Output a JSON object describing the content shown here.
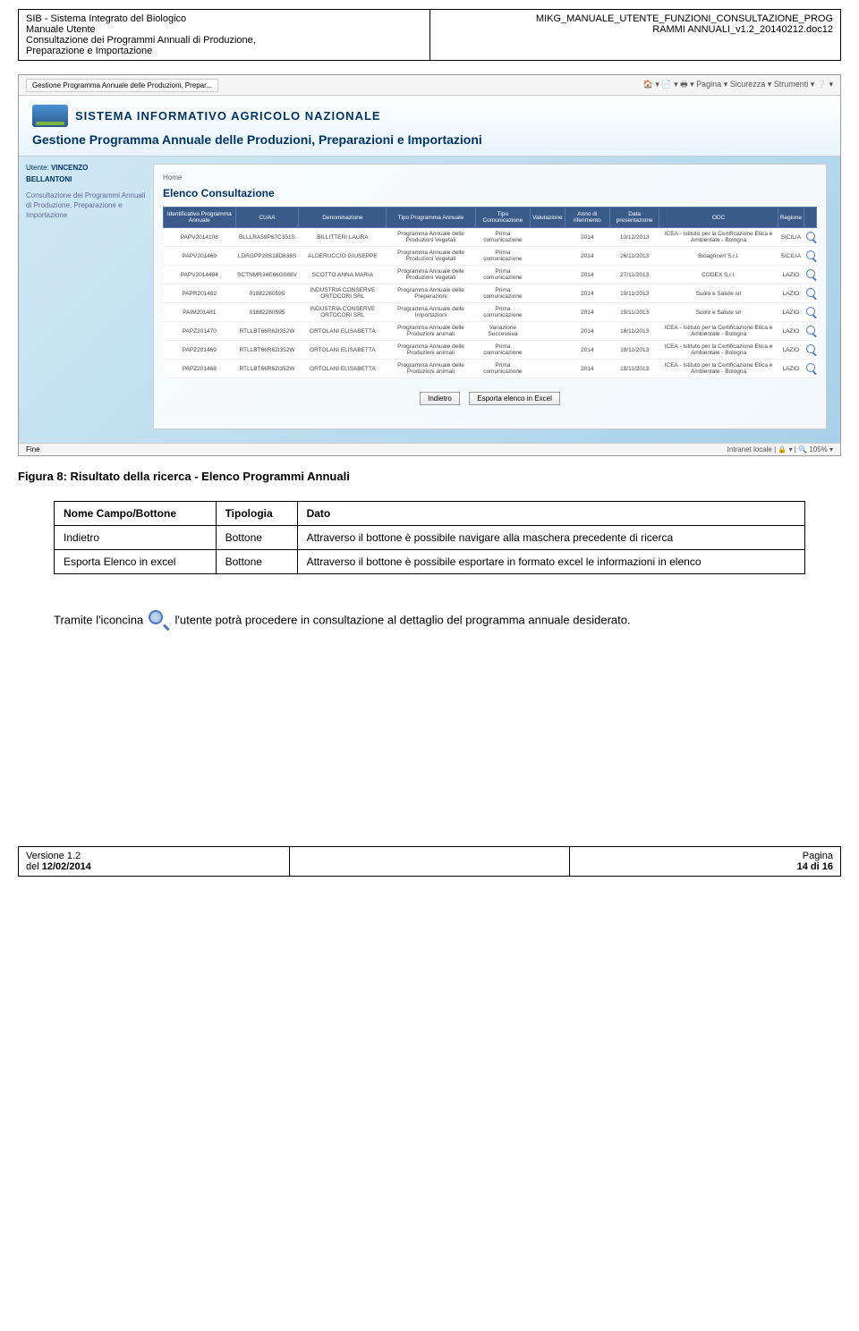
{
  "header": {
    "left_line1": "SIB - Sistema Integrato del Biologico",
    "left_line2": "Manuale Utente",
    "left_line3": "Consultazione dei Programmi Annuali di Produzione,",
    "left_line4": "Preparazione e Importazione",
    "right_line1": "MIKG_MANUALE_UTENTE_FUNZIONI_CONSULTAZIONE_PROG",
    "right_line2": "RAMMI ANNUALI_v1.2_20140212.doc12"
  },
  "browser": {
    "tab": "Gestione Programma Annuale delle Produzioni, Prepar...",
    "tools": "🏠 ▾  📄  ▾  🖶 ▾  Pagina ▾  Sicurezza ▾  Strumenti ▾  ❔ ▾",
    "status_left": "Fine",
    "status_right": "Intranet locale      | 🔒 ▾ | 🔍 105% ▾"
  },
  "banner": {
    "system": "SISTEMA INFORMATIVO AGRICOLO NAZIONALE",
    "app_title": "Gestione Programma Annuale delle Produzioni, Preparazioni e Importazioni"
  },
  "sidebar": {
    "user_label": "Utente:",
    "user_first": "VINCENZO",
    "user_last": "BELLANTONI",
    "menu": "Consultazione dei Programmi Annuali di Produzione, Preparazione e Importazione"
  },
  "panel": {
    "breadcrumb": "Home",
    "title": "Elenco Consultazione"
  },
  "table": {
    "columns": [
      "Identificativo Programma Annuale",
      "CUAA",
      "Denominazione",
      "Tipo Programma Annuale",
      "Tipo Comunicazione",
      "Valutazione",
      "Anno di riferimento",
      "Data presentazione",
      "ODC",
      "Regione",
      ""
    ],
    "rows": [
      [
        "PAPV2014108",
        "BLLLRA59P67C351S",
        "BILLITTERI LAURA",
        "Programma Annuale delle Produzioni Vegetali",
        "Prima comunicazione",
        "",
        "2014",
        "10/12/2013",
        "ICEA - Istituto per la Certificazione Etica e Ambientale - Bologna",
        "SICILIA"
      ],
      [
        "PAPV201469",
        "LDRGPP28S18D636S",
        "ALDERUCCIO GIUSEPPE",
        "Programma Annuale delle Produzioni Vegetali",
        "Prima comunicazione",
        "",
        "2014",
        "26/11/2013",
        "Bioagricert S.r.l.",
        "SICILIA"
      ],
      [
        "PAPV2014484",
        "SCTNMR34E66G088V",
        "SCOTTO ANNA MARIA",
        "Programma Annuale delle Produzioni Vegetali",
        "Prima comunicazione",
        "",
        "2014",
        "27/11/2013",
        "CODEX S.r.l.",
        "LAZIO"
      ],
      [
        "PAPR201482",
        "01882280595",
        "INDUSTRIA CONSERVE ORTOCORI SRL",
        "Programma Annuale delle Preparazioni",
        "Prima comunicazione",
        "",
        "2014",
        "19/11/2013",
        "Suolo e Salute srl",
        "LAZIO"
      ],
      [
        "PAIM201481",
        "01882280595",
        "INDUSTRIA CONSERVE ORTOCORI SRL",
        "Programma Annuale delle Importazioni",
        "Prima comunicazione",
        "",
        "2014",
        "19/11/2013",
        "Suolo e Salute srl",
        "LAZIO"
      ],
      [
        "PAPZ201470",
        "RTLLBT66R62I352W",
        "ORTOLANI ELISABETTA",
        "Programma Annuale delle Produzioni animali",
        "Variazione Successiva",
        "",
        "2014",
        "18/11/2013",
        "ICEA - Istituto per la Certificazione Etica e Ambientale - Bologna",
        "LAZIO"
      ],
      [
        "PAPZ201469",
        "RTLLBT66R62I352W",
        "ORTOLANI ELISABETTA",
        "Programma Annuale delle Produzioni animali",
        "Prima comunicazione",
        "",
        "2014",
        "18/11/2013",
        "ICEA - Istituto per la Certificazione Etica e Ambientale - Bologna",
        "LAZIO"
      ],
      [
        "PAPZ201468",
        "RTLLBT66R62I352W",
        "ORTOLANI ELISABETTA",
        "Programma Annuale delle Produzioni animali",
        "Prima comunicazione",
        "",
        "2014",
        "18/11/2013",
        "ICEA - Istituto per la Certificazione Etica e Ambientale - Bologna",
        "LAZIO"
      ]
    ]
  },
  "buttons": {
    "back": "Indietro",
    "export": "Esporta elenco in Excel"
  },
  "figure_caption": "Figura 8: Risultato della ricerca - Elenco Programmi Annuali",
  "desc_table": {
    "headers": [
      "Nome Campo/Bottone",
      "Tipologia",
      "Dato"
    ],
    "rows": [
      [
        "Indietro",
        "Bottone",
        "Attraverso il bottone è possibile navigare alla maschera precedente di ricerca"
      ],
      [
        "Esporta Elenco in excel",
        "Bottone",
        "Attraverso il bottone è possibile esportare in formato excel le informazioni in elenco"
      ]
    ]
  },
  "paragraph": {
    "before": "Tramite l'iconcina ",
    "after": " l'utente potrà procedere in consultazione al dettaglio del programma annuale desiderato."
  },
  "footer": {
    "version_label": "Versione 1.2",
    "date_label": "del ",
    "date": "12/02/2014",
    "page_label": "Pagina",
    "page_num": "14 di 16"
  }
}
